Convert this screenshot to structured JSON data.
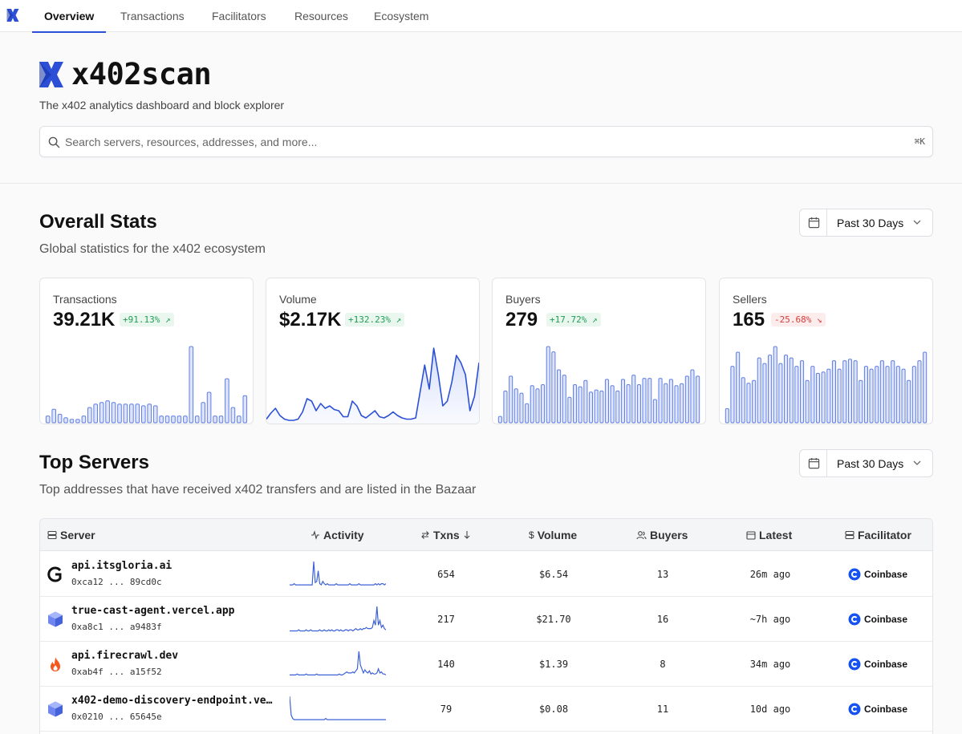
{
  "nav": {
    "tabs": [
      "Overview",
      "Transactions",
      "Facilitators",
      "Resources",
      "Ecosystem"
    ],
    "active": "Overview"
  },
  "hero": {
    "brand": "x402scan",
    "tagline": "The x402 analytics dashboard and block explorer",
    "search_placeholder": "Search servers, resources, addresses, and more...",
    "shortcut": "⌘K"
  },
  "overall": {
    "title": "Overall Stats",
    "subtitle": "Global statistics for the x402 ecosystem",
    "range": "Past 30 Days"
  },
  "stats": [
    {
      "label": "Transactions",
      "value": "39.21K",
      "delta": "+91.13%",
      "trend": "up",
      "chart": "bar",
      "series": [
        4,
        8,
        5,
        3,
        2,
        2,
        4,
        9,
        11,
        12,
        13,
        12,
        11,
        11,
        11,
        11,
        10,
        11,
        10,
        4,
        4,
        4,
        4,
        4,
        45,
        4,
        12,
        18,
        4,
        4,
        26,
        9,
        4,
        16
      ]
    },
    {
      "label": "Volume",
      "value": "$2.17K",
      "delta": "+132.23%",
      "trend": "up",
      "chart": "area",
      "series": [
        3,
        8,
        12,
        6,
        3,
        2,
        2,
        3,
        9,
        20,
        18,
        10,
        16,
        12,
        14,
        11,
        10,
        5,
        5,
        18,
        14,
        6,
        4,
        7,
        10,
        5,
        4,
        6,
        9,
        6,
        4,
        3,
        3,
        4,
        26,
        48,
        28,
        62,
        40,
        14,
        18,
        34,
        56,
        50,
        40,
        10,
        22,
        50
      ]
    },
    {
      "label": "Buyers",
      "value": "279",
      "delta": "+17.72%",
      "trend": "up",
      "chart": "bar",
      "series": [
        6,
        30,
        44,
        32,
        28,
        18,
        35,
        32,
        36,
        72,
        67,
        50,
        45,
        24,
        36,
        34,
        40,
        29,
        31,
        30,
        41,
        35,
        30,
        41,
        36,
        45,
        36,
        42,
        42,
        22,
        42,
        37,
        41,
        35,
        37,
        44,
        50,
        44
      ]
    },
    {
      "label": "Sellers",
      "value": "165",
      "delta": "-25.68%",
      "trend": "down",
      "chart": "bar",
      "series": [
        10,
        40,
        50,
        32,
        28,
        30,
        46,
        42,
        48,
        54,
        42,
        48,
        46,
        40,
        44,
        30,
        40,
        35,
        36,
        38,
        44,
        38,
        44,
        45,
        44,
        30,
        40,
        38,
        40,
        44,
        40,
        44,
        40,
        38,
        30,
        40,
        44,
        50
      ]
    }
  ],
  "servers_section": {
    "title": "Top Servers",
    "subtitle": "Top addresses that have received x402 transfers and are listed in the Bazaar",
    "range": "Past 30 Days",
    "columns": [
      "Server",
      "Activity",
      "Txns",
      "Volume",
      "Buyers",
      "Latest",
      "Facilitator"
    ]
  },
  "servers": [
    {
      "name": "api.itsgloria.ai",
      "address": "0xca12 ... 89cd0c",
      "icon": "gloria-logo-icon",
      "txns": "654",
      "volume": "$6.54",
      "buyers": "13",
      "latest": "26m ago",
      "facilitator": "Coinbase",
      "activity": [
        2,
        2,
        2,
        3,
        2,
        2,
        2,
        2,
        2,
        2,
        2,
        2,
        2,
        2,
        2,
        2,
        22,
        4,
        5,
        14,
        3,
        2,
        5,
        3,
        2,
        3,
        2,
        2,
        2,
        2,
        2,
        3,
        2,
        2,
        2,
        2,
        2,
        2,
        2,
        2,
        3,
        2,
        2,
        2,
        2,
        2,
        3,
        2,
        2,
        2,
        2,
        2,
        2,
        2,
        2,
        2,
        2,
        3,
        2,
        3,
        2,
        3,
        3,
        2,
        3
      ]
    },
    {
      "name": "true-cast-agent.vercel.app",
      "address": "0xa8c1 ... a9483f",
      "icon": "cube-icon",
      "txns": "217",
      "volume": "$21.70",
      "buyers": "16",
      "latest": "~7h ago",
      "facilitator": "Coinbase",
      "activity": [
        1,
        1,
        1,
        1,
        1,
        1,
        2,
        1,
        1,
        1,
        1,
        2,
        1,
        1,
        2,
        1,
        1,
        1,
        1,
        1,
        2,
        1,
        1,
        2,
        1,
        1,
        2,
        1,
        2,
        1,
        1,
        2,
        2,
        1,
        2,
        1,
        1,
        2,
        2,
        1,
        2,
        2,
        1,
        2,
        3,
        2,
        2,
        3,
        2,
        3,
        3,
        4,
        3,
        3,
        3,
        4,
        10,
        6,
        22,
        6,
        10,
        4,
        6,
        3,
        2
      ]
    },
    {
      "name": "api.firecrawl.dev",
      "address": "0xab4f ... a15f52",
      "icon": "firecrawl-flame-icon",
      "txns": "140",
      "volume": "$1.39",
      "buyers": "8",
      "latest": "34m ago",
      "facilitator": "Coinbase",
      "activity": [
        2,
        2,
        2,
        2,
        2,
        3,
        2,
        2,
        2,
        2,
        2,
        3,
        2,
        2,
        2,
        2,
        2,
        2,
        3,
        2,
        2,
        2,
        2,
        2,
        2,
        2,
        2,
        2,
        2,
        2,
        2,
        2,
        2,
        3,
        2,
        2,
        3,
        4,
        5,
        4,
        4,
        4,
        5,
        4,
        6,
        8,
        25,
        12,
        8,
        4,
        7,
        5,
        4,
        6,
        3,
        4,
        3,
        3,
        4,
        8,
        4,
        5,
        3,
        3,
        2
      ]
    },
    {
      "name": "x402-demo-discovery-endpoint.vercel.app",
      "address": "0x0210 ... 65645e",
      "icon": "cube-icon",
      "txns": "79",
      "volume": "$0.08",
      "buyers": "11",
      "latest": "10d ago",
      "facilitator": "Coinbase",
      "activity": [
        22,
        6,
        3,
        2,
        2,
        2,
        2,
        2,
        2,
        2,
        2,
        2,
        2,
        2,
        2,
        2,
        2,
        2,
        2,
        2,
        2,
        2,
        2,
        2,
        3,
        2,
        2,
        2,
        2,
        2,
        2,
        2,
        2,
        2,
        2,
        2,
        2,
        2,
        2,
        2,
        2,
        2,
        2,
        2,
        2,
        2,
        2,
        2,
        2,
        2,
        2,
        2,
        2,
        2,
        2,
        2,
        2,
        2,
        2,
        2,
        2,
        2,
        2,
        2,
        2
      ]
    }
  ],
  "colors": {
    "accent": "#2b50d6",
    "bar_fill": "#dde4fb",
    "bar_stroke": "#5f7ee6",
    "up": "#1f9d55",
    "down": "#d63b3b"
  }
}
